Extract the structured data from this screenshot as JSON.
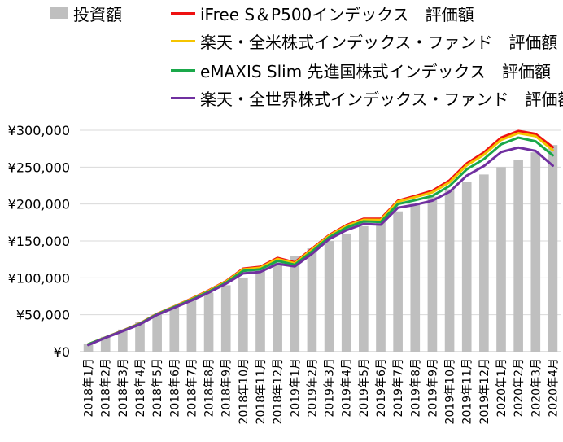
{
  "chart_data": {
    "type": "bar+line",
    "title": "",
    "xlabel": "",
    "ylabel": "",
    "ylim": [
      0,
      300000
    ],
    "y_ticks": [
      "¥0",
      "¥50,000",
      "¥100,000",
      "¥150,000",
      "¥200,000",
      "¥250,000",
      "¥300,000"
    ],
    "y_tick_values": [
      0,
      50000,
      100000,
      150000,
      200000,
      250000,
      300000
    ],
    "grid": "horizontal",
    "legend_position": "top-left",
    "categories": [
      "2018年1月",
      "2018年2月",
      "2018年3月",
      "2018年4月",
      "2018年5月",
      "2018年6月",
      "2018年7月",
      "2018年8月",
      "2018年9月",
      "2018年10月",
      "2018年11月",
      "2018年12月",
      "2019年1月",
      "2019年2月",
      "2019年3月",
      "2019年4月",
      "2019年5月",
      "2019年6月",
      "2019年7月",
      "2019年8月",
      "2019年9月",
      "2019年10月",
      "2019年11月",
      "2019年12月",
      "2020年1月",
      "2020年2月",
      "2020年3月",
      "2020年4月"
    ],
    "bar_series": {
      "name": "投資額",
      "color": "#bfbfbf",
      "values": [
        10000,
        20000,
        30000,
        40000,
        50000,
        60000,
        70000,
        80000,
        90000,
        100000,
        110000,
        120000,
        130000,
        140000,
        150000,
        160000,
        170000,
        180000,
        190000,
        200000,
        210000,
        220000,
        230000,
        240000,
        250000,
        260000,
        270000,
        280000
      ]
    },
    "series": [
      {
        "name": "iFree S＆P500インデックス　評価額",
        "color": "#ee1111",
        "values": [
          10000,
          19300,
          28500,
          38300,
          51300,
          61300,
          71800,
          83000,
          95500,
          112500,
          115000,
          127000,
          121000,
          139500,
          158000,
          171500,
          180000,
          180000,
          204500,
          211000,
          218000,
          232000,
          255000,
          270000,
          290000,
          299000,
          295000,
          277000
        ]
      },
      {
        "name": "楽天・全米株式インデックス・ファンド　評価額",
        "color": "#f5c400",
        "values": [
          10000,
          19200,
          28300,
          38100,
          51000,
          61000,
          71300,
          82300,
          94800,
          111500,
          113800,
          125600,
          119700,
          138200,
          157000,
          170200,
          178700,
          178500,
          203300,
          209300,
          215800,
          229500,
          252500,
          267000,
          287000,
          296000,
          292000,
          273000
        ]
      },
      {
        "name": "eMAXIS Slim 先進国株式インデックス　評価額",
        "color": "#1aa84a",
        "values": [
          10000,
          19100,
          28100,
          37700,
          50600,
          60500,
          70500,
          81300,
          93400,
          109500,
          111700,
          123000,
          117800,
          135800,
          155000,
          168000,
          176500,
          175800,
          200000,
          205200,
          211000,
          224500,
          247000,
          261000,
          281000,
          290000,
          285000,
          266000
        ]
      },
      {
        "name": "楽天・全世界株式インデックス・ファンド　評価額",
        "color": "#7030a0",
        "values": [
          9000,
          18800,
          27700,
          37000,
          49800,
          59500,
          69300,
          80000,
          92000,
          106000,
          108000,
          119000,
          115500,
          132500,
          152500,
          164500,
          173000,
          172000,
          195000,
          199000,
          204500,
          216500,
          238500,
          251500,
          270500,
          276500,
          272000,
          252000
        ]
      }
    ]
  }
}
